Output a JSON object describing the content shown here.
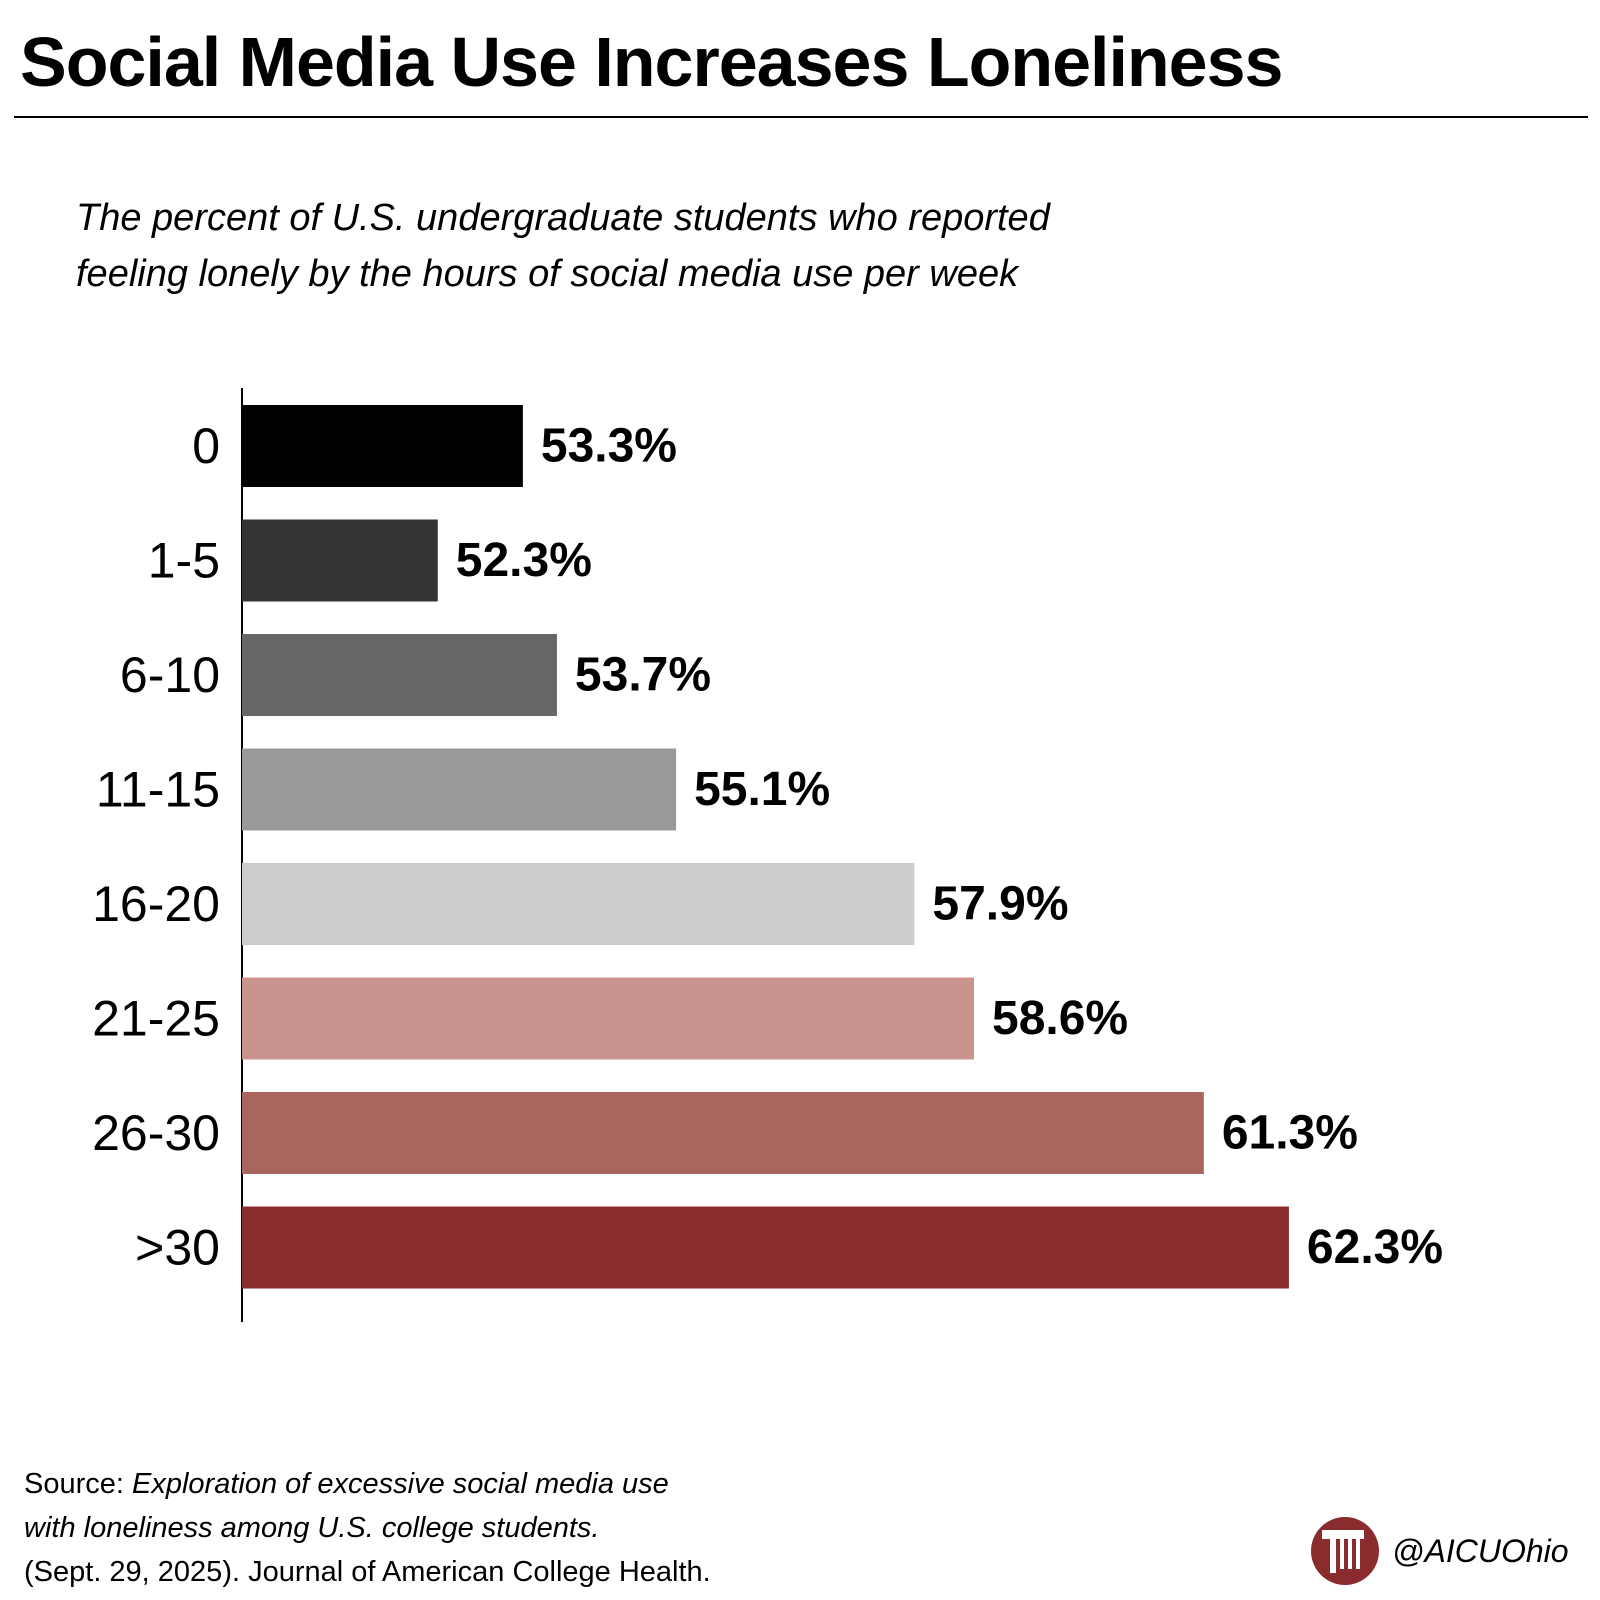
{
  "title": "Social Media Use Increases Loneliness",
  "subtitle_line1": "The percent of U.S. undergraduate students who reported",
  "subtitle_line2": "feeling lonely by the hours of social media use per week",
  "chart_data": {
    "type": "bar",
    "orientation": "horizontal",
    "categories": [
      "0",
      "1-5",
      "6-10",
      "11-15",
      "16-20",
      "21-25",
      "26-30",
      ">30"
    ],
    "values": [
      53.3,
      52.3,
      53.7,
      55.1,
      57.9,
      58.6,
      61.3,
      62.3
    ],
    "value_labels": [
      "53.3%",
      "52.3%",
      "53.7%",
      "55.1%",
      "57.9%",
      "58.6%",
      "61.3%",
      "62.3%"
    ],
    "bar_colors": [
      "#000000",
      "#333333",
      "#666666",
      "#999999",
      "#cccccc",
      "#c9948e",
      "#a8665f",
      "#8a2b2e"
    ],
    "xlim": [
      50,
      62.9
    ],
    "grid": false,
    "legend": "none"
  },
  "source": {
    "prefix": "Source: ",
    "title_line1": "Exploration of excessive social media use",
    "title_line2": "with loneliness among U.S. college students.",
    "citation": "(Sept. 29, 2025). Journal of American College Health."
  },
  "brand": {
    "handle": "@AICUOhio",
    "logo_icon": "column-pillar-logo",
    "logo_color": "#8a2b2e"
  }
}
